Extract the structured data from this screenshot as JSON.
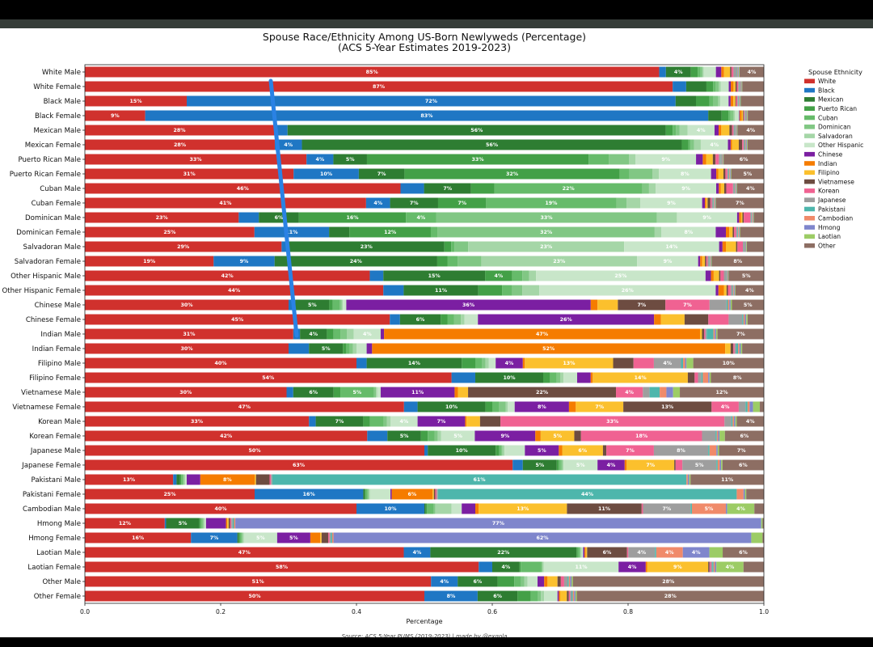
{
  "chart_data": {
    "type": "bar",
    "orientation": "horizontal",
    "stacked": true,
    "title": "Spouse Race/Ethnicity Among US-Born Newlyweds (Percentage)",
    "subtitle": "(ACS 5-Year Estimates 2019-2023)",
    "xlabel": "Percentage",
    "xlim": [
      0,
      1
    ],
    "xticks": [
      "0.0",
      "0.2",
      "0.4",
      "0.6",
      "0.8",
      "1.0"
    ],
    "legend_title": "Spouse Ethnicity",
    "legend_position": "right",
    "source": "Source: ACS 5-Year PUMS (2019-2023) | made by @exqola",
    "series": [
      {
        "name": "White",
        "color": "#d0312d"
      },
      {
        "name": "Black",
        "color": "#1f77c4"
      },
      {
        "name": "Mexican",
        "color": "#2e7d32"
      },
      {
        "name": "Puerto Rican",
        "color": "#43a047"
      },
      {
        "name": "Cuban",
        "color": "#66bb6a"
      },
      {
        "name": "Dominican",
        "color": "#81c784"
      },
      {
        "name": "Salvadoran",
        "color": "#a5d6a7"
      },
      {
        "name": "Other Hispanic",
        "color": "#c8e6c9"
      },
      {
        "name": "Chinese",
        "color": "#7b1fa2"
      },
      {
        "name": "Indian",
        "color": "#f57c00"
      },
      {
        "name": "Filipino",
        "color": "#fbc02d"
      },
      {
        "name": "Vietnamese",
        "color": "#6d4c41"
      },
      {
        "name": "Korean",
        "color": "#f06292"
      },
      {
        "name": "Japanese",
        "color": "#9e9e9e"
      },
      {
        "name": "Pakistani",
        "color": "#4db6ac"
      },
      {
        "name": "Cambodian",
        "color": "#f08a6a"
      },
      {
        "name": "Hmong",
        "color": "#7f86cc"
      },
      {
        "name": "Laotian",
        "color": "#9ccc65"
      },
      {
        "name": "Other",
        "color": "#8d6e63"
      }
    ],
    "rows": [
      {
        "label": "White Male",
        "values": [
          0.85,
          0.01,
          0.037,
          0.01,
          0.004,
          0.003,
          0.002,
          0.018,
          0.008,
          0.004,
          0.009,
          0.002,
          0.003,
          0.005,
          0.001,
          0.001,
          0.001,
          0.001,
          0.036
        ]
      },
      {
        "label": "White Female",
        "values": [
          0.87,
          0.02,
          0.03,
          0.01,
          0.004,
          0.004,
          0.003,
          0.012,
          0.003,
          0.004,
          0.003,
          0.002,
          0.002,
          0.002,
          0.001,
          0.001,
          0.001,
          0.001,
          0.032
        ]
      },
      {
        "label": "Black Male",
        "values": [
          0.15,
          0.72,
          0.03,
          0.02,
          0.005,
          0.008,
          0.003,
          0.012,
          0.003,
          0.004,
          0.003,
          0.001,
          0.002,
          0.001,
          0.001,
          0.001,
          0.001,
          0.001,
          0.034
        ]
      },
      {
        "label": "Black Female",
        "values": [
          0.09,
          0.84,
          0.02,
          0.01,
          0.003,
          0.005,
          0.002,
          0.006,
          0.001,
          0.003,
          0.002,
          0.001,
          0.001,
          0.001,
          0.001,
          0.001,
          0.001,
          0.001,
          0.024
        ]
      },
      {
        "label": "Mexican Male",
        "values": [
          0.28,
          0.02,
          0.56,
          0.01,
          0.005,
          0.005,
          0.012,
          0.04,
          0.006,
          0.004,
          0.012,
          0.004,
          0.002,
          0.002,
          0.001,
          0.001,
          0.001,
          0.001,
          0.039
        ]
      },
      {
        "label": "Mexican Female",
        "values": [
          0.28,
          0.04,
          0.56,
          0.01,
          0.003,
          0.005,
          0.01,
          0.04,
          0.004,
          0.002,
          0.01,
          0.005,
          0.002,
          0.002,
          0.001,
          0.001,
          0.001,
          0.001,
          0.024
        ]
      },
      {
        "label": "Puerto Rican Male",
        "values": [
          0.33,
          0.04,
          0.05,
          0.33,
          0.03,
          0.03,
          0.01,
          0.09,
          0.01,
          0.005,
          0.01,
          0.004,
          0.005,
          0.003,
          0.001,
          0.001,
          0.001,
          0.001,
          0.06
        ]
      },
      {
        "label": "Puerto Rican Female",
        "values": [
          0.32,
          0.1,
          0.07,
          0.33,
          0.015,
          0.035,
          0.01,
          0.08,
          0.008,
          0.003,
          0.008,
          0.003,
          0.003,
          0.002,
          0.001,
          0.001,
          0.001,
          0.001,
          0.05
        ]
      },
      {
        "label": "Cuban Male",
        "values": [
          0.47,
          0.035,
          0.07,
          0.035,
          0.22,
          0.01,
          0.01,
          0.09,
          0.004,
          0.003,
          0.005,
          0.003,
          0.01,
          0.002,
          0.001,
          0.001,
          0.001,
          0.001,
          0.04
        ]
      },
      {
        "label": "Cuban Female",
        "values": [
          0.41,
          0.035,
          0.07,
          0.07,
          0.19,
          0.015,
          0.02,
          0.09,
          0.004,
          0.002,
          0.002,
          0.004,
          0.002,
          0.002,
          0.001,
          0.001,
          0.001,
          0.001,
          0.07
        ]
      },
      {
        "label": "Dominican Male",
        "values": [
          0.23,
          0.03,
          0.06,
          0.16,
          0.045,
          0.33,
          0.03,
          0.09,
          0.003,
          0.003,
          0.002,
          0.002,
          0.01,
          0.001,
          0.001,
          0.001,
          0.001,
          0.001,
          0.015
        ]
      },
      {
        "label": "Dominican Female",
        "values": [
          0.25,
          0.11,
          0.03,
          0.12,
          0.01,
          0.32,
          0.01,
          0.08,
          0.015,
          0.005,
          0.005,
          0.002,
          0.003,
          0.002,
          0.001,
          0.001,
          0.001,
          0.001,
          0.035
        ]
      },
      {
        "label": "Salvadoran Male",
        "values": [
          0.29,
          0.01,
          0.23,
          0.01,
          0.005,
          0.02,
          0.23,
          0.14,
          0.005,
          0.005,
          0.015,
          0.002,
          0.008,
          0.002,
          0.001,
          0.001,
          0.001,
          0.001,
          0.025
        ]
      },
      {
        "label": "Salvadoran Female",
        "values": [
          0.19,
          0.09,
          0.24,
          0.015,
          0.015,
          0.035,
          0.23,
          0.09,
          0.003,
          0.003,
          0.004,
          0.002,
          0.002,
          0.002,
          0.001,
          0.001,
          0.001,
          0.001,
          0.077
        ]
      },
      {
        "label": "Other Hispanic Male",
        "values": [
          0.42,
          0.02,
          0.15,
          0.04,
          0.015,
          0.01,
          0.01,
          0.25,
          0.008,
          0.004,
          0.008,
          0.002,
          0.005,
          0.003,
          0.001,
          0.001,
          0.001,
          0.001,
          0.052
        ]
      },
      {
        "label": "Other Hispanic Female",
        "values": [
          0.44,
          0.03,
          0.11,
          0.035,
          0.015,
          0.015,
          0.025,
          0.26,
          0.004,
          0.008,
          0.004,
          0.002,
          0.004,
          0.003,
          0.001,
          0.001,
          0.001,
          0.001,
          0.042
        ]
      },
      {
        "label": "Chinese Male",
        "values": [
          0.3,
          0.01,
          0.05,
          0.005,
          0.01,
          0.003,
          0.002,
          0.005,
          0.36,
          0.01,
          0.03,
          0.07,
          0.065,
          0.025,
          0.002,
          0.002,
          0.002,
          0.002,
          0.047
        ]
      },
      {
        "label": "Chinese Female",
        "values": [
          0.45,
          0.015,
          0.06,
          0.01,
          0.01,
          0.01,
          0.005,
          0.02,
          0.26,
          0.01,
          0.035,
          0.035,
          0.03,
          0.02,
          0.002,
          0.002,
          0.002,
          0.002,
          0.024
        ]
      },
      {
        "label": "Indian Male",
        "values": [
          0.31,
          0.01,
          0.04,
          0.01,
          0.01,
          0.01,
          0.01,
          0.04,
          0.005,
          0.47,
          0.003,
          0.003,
          0.002,
          0.002,
          0.01,
          0.002,
          0.002,
          0.002,
          0.069
        ]
      },
      {
        "label": "Indian Female",
        "values": [
          0.3,
          0.03,
          0.05,
          0.005,
          0.005,
          0.005,
          0.005,
          0.015,
          0.008,
          0.52,
          0.008,
          0.004,
          0.002,
          0.002,
          0.003,
          0.002,
          0.002,
          0.002,
          0.032
        ]
      },
      {
        "label": "Filipino Male",
        "values": [
          0.4,
          0.015,
          0.14,
          0.02,
          0.01,
          0.005,
          0.005,
          0.01,
          0.04,
          0.003,
          0.13,
          0.03,
          0.03,
          0.04,
          0.003,
          0.003,
          0.002,
          0.01,
          0.104
        ]
      },
      {
        "label": "Filipino Female",
        "values": [
          0.54,
          0.035,
          0.1,
          0.01,
          0.01,
          0.005,
          0.005,
          0.02,
          0.02,
          0.003,
          0.14,
          0.01,
          0.005,
          0.005,
          0.002,
          0.008,
          0.002,
          0.002,
          0.078
        ]
      },
      {
        "label": "Vietnamese Male",
        "values": [
          0.3,
          0.01,
          0.06,
          0.01,
          0.05,
          0.003,
          0.002,
          0.005,
          0.11,
          0.005,
          0.015,
          0.22,
          0.04,
          0.01,
          0.015,
          0.01,
          0.01,
          0.01,
          0.125
        ]
      },
      {
        "label": "Vietnamese Female",
        "values": [
          0.47,
          0.02,
          0.1,
          0.01,
          0.01,
          0.01,
          0.003,
          0.01,
          0.08,
          0.01,
          0.07,
          0.13,
          0.04,
          0.01,
          0.003,
          0.003,
          0.005,
          0.01,
          0.006
        ]
      },
      {
        "label": "Korean Male",
        "values": [
          0.33,
          0.01,
          0.07,
          0.01,
          0.02,
          0.005,
          0.005,
          0.04,
          0.07,
          0.002,
          0.02,
          0.03,
          0.33,
          0.01,
          0.002,
          0.002,
          0.002,
          0.002,
          0.04
        ]
      },
      {
        "label": "Korean Female",
        "values": [
          0.42,
          0.03,
          0.05,
          0.01,
          0.01,
          0.005,
          0.005,
          0.05,
          0.09,
          0.008,
          0.05,
          0.01,
          0.18,
          0.02,
          0.002,
          0.002,
          0.002,
          0.008,
          0.058
        ]
      },
      {
        "label": "Japanese Male",
        "values": [
          0.5,
          0.005,
          0.1,
          0.005,
          0.003,
          0.002,
          0.003,
          0.03,
          0.05,
          0.005,
          0.06,
          0.005,
          0.07,
          0.08,
          0.002,
          0.01,
          0.002,
          0.002,
          0.066
        ]
      },
      {
        "label": "Japanese Female",
        "values": [
          0.63,
          0.015,
          0.05,
          0.003,
          0.003,
          0.002,
          0.002,
          0.05,
          0.04,
          0.003,
          0.07,
          0.002,
          0.01,
          0.05,
          0.002,
          0.003,
          0.002,
          0.002,
          0.061
        ]
      },
      {
        "label": "Pakistani Male",
        "values": [
          0.13,
          0.005,
          0.005,
          0.002,
          0.002,
          0.002,
          0.002,
          0.002,
          0.02,
          0.08,
          0.002,
          0.02,
          0.002,
          0.002,
          0.61,
          0.002,
          0.002,
          0.002,
          0.108
        ]
      },
      {
        "label": "Pakistani Female",
        "values": [
          0.25,
          0.16,
          0.002,
          0.002,
          0.002,
          0.002,
          0.002,
          0.03,
          0.002,
          0.06,
          0.002,
          0.002,
          0.002,
          0.002,
          0.44,
          0.01,
          0.002,
          0.002,
          0.026
        ]
      },
      {
        "label": "Cambodian Male",
        "values": [
          0.4,
          0.1,
          0.002,
          0.002,
          0.01,
          0.002,
          0.024,
          0.015,
          0.02,
          0.005,
          0.13,
          0.11,
          0.002,
          0.07,
          0.002,
          0.05,
          0.002,
          0.04,
          0.014
        ]
      },
      {
        "label": "Hmong Male",
        "values": [
          0.12,
          0.002,
          0.05,
          0.002,
          0.002,
          0.002,
          0.002,
          0.002,
          0.03,
          0.002,
          0.002,
          0.002,
          0.002,
          0.002,
          0.002,
          0.002,
          0.79,
          0.002,
          0.002
        ]
      },
      {
        "label": "Hmong Female",
        "values": [
          0.16,
          0.07,
          0.002,
          0.002,
          0.002,
          0.002,
          0.002,
          0.05,
          0.05,
          0.015,
          0.002,
          0.01,
          0.002,
          0.002,
          0.002,
          0.002,
          0.63,
          0.017,
          0.002
        ]
      },
      {
        "label": "Laotian Male",
        "values": [
          0.48,
          0.04,
          0.22,
          0.002,
          0.002,
          0.002,
          0.002,
          0.002,
          0.002,
          0.002,
          0.002,
          0.06,
          0.002,
          0.04,
          0.002,
          0.04,
          0.04,
          0.02,
          0.062
        ]
      },
      {
        "label": "Laotian Female",
        "values": [
          0.58,
          0.02,
          0.04,
          0.002,
          0.03,
          0.002,
          0.002,
          0.11,
          0.04,
          0.002,
          0.09,
          0.002,
          0.002,
          0.002,
          0.002,
          0.002,
          0.002,
          0.04,
          0.03
        ]
      },
      {
        "label": "Other Male",
        "values": [
          0.52,
          0.04,
          0.06,
          0.025,
          0.01,
          0.005,
          0.005,
          0.015,
          0.01,
          0.005,
          0.015,
          0.005,
          0.005,
          0.005,
          0.002,
          0.002,
          0.002,
          0.002,
          0.287
        ]
      },
      {
        "label": "Other Female",
        "values": [
          0.51,
          0.08,
          0.06,
          0.02,
          0.01,
          0.005,
          0.005,
          0.02,
          0.002,
          0.002,
          0.01,
          0.003,
          0.002,
          0.002,
          0.002,
          0.002,
          0.002,
          0.002,
          0.281
        ]
      }
    ]
  }
}
